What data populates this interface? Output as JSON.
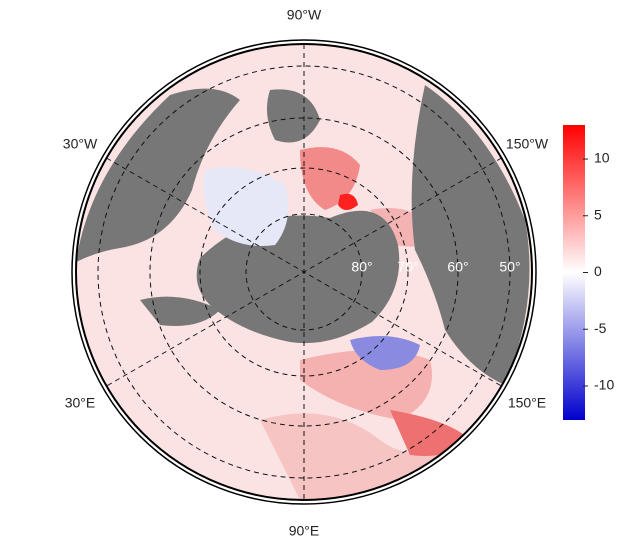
{
  "meridian_labels": [
    "90°W",
    "30°W",
    "150°W",
    "30°E",
    "150°E",
    "90°E"
  ],
  "latitude_labels": [
    "80°",
    "70°",
    "60°",
    "50°"
  ],
  "colorbar": {
    "lim": [
      -13,
      13
    ],
    "ticks": [
      10,
      5,
      0,
      -5,
      -10
    ],
    "colors": [
      "#0000cc",
      "#ffffff",
      "#ff0000"
    ]
  }
}
